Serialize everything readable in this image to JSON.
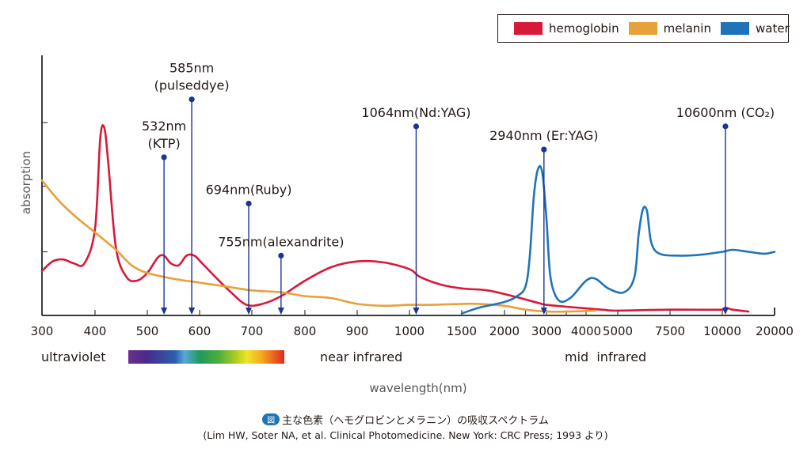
{
  "chart_data": {
    "type": "line",
    "title": "主な色素（ヘモグロビンとメラニン）の吸収スペクトラム",
    "source": "(Lim HW, Soter NA, et al. Clinical Photomedicine. New York: CRC Press; 1993 より)",
    "figure_badge": "図",
    "xlabel": "wavelength(nm)",
    "ylabel": "absorption",
    "x_scale": "piecewise (non-linear, tick-indexed)",
    "x_ticks": [
      300,
      400,
      500,
      600,
      700,
      800,
      900,
      1000,
      1500,
      2000,
      3000,
      4000,
      5000,
      7500,
      10000,
      20000
    ],
    "x_minor_ticks": [
      2500,
      3500
    ],
    "ylim": [
      0,
      1
    ],
    "y_ticks": [
      0.33,
      0.67,
      1.0
    ],
    "grid": false,
    "legend": {
      "position": "top-right",
      "entries": [
        {
          "name": "hemoglobin",
          "color": "#d7193a"
        },
        {
          "name": "melanin",
          "color": "#e8a03a"
        },
        {
          "name": "water",
          "color": "#1f74b8"
        }
      ]
    },
    "series": [
      {
        "name": "hemoglobin",
        "color": "#d7193a",
        "points": [
          [
            300,
            0.23
          ],
          [
            320,
            0.28
          ],
          [
            340,
            0.29
          ],
          [
            360,
            0.27
          ],
          [
            380,
            0.27
          ],
          [
            400,
            0.45
          ],
          [
            410,
            0.92
          ],
          [
            418,
            0.97
          ],
          [
            425,
            0.8
          ],
          [
            440,
            0.35
          ],
          [
            460,
            0.2
          ],
          [
            480,
            0.18
          ],
          [
            500,
            0.22
          ],
          [
            520,
            0.3
          ],
          [
            532,
            0.31
          ],
          [
            545,
            0.27
          ],
          [
            560,
            0.26
          ],
          [
            575,
            0.31
          ],
          [
            590,
            0.31
          ],
          [
            605,
            0.27
          ],
          [
            630,
            0.2
          ],
          [
            660,
            0.12
          ],
          [
            690,
            0.055
          ],
          [
            720,
            0.06
          ],
          [
            755,
            0.1
          ],
          [
            800,
            0.18
          ],
          [
            850,
            0.25
          ],
          [
            900,
            0.28
          ],
          [
            950,
            0.275
          ],
          [
            1000,
            0.24
          ],
          [
            1100,
            0.2
          ],
          [
            1300,
            0.16
          ],
          [
            1500,
            0.14
          ],
          [
            1800,
            0.13
          ],
          [
            2200,
            0.1
          ],
          [
            2800,
            0.065
          ],
          [
            3000,
            0.055
          ],
          [
            3500,
            0.045
          ],
          [
            4500,
            0.03
          ],
          [
            5000,
            0.025
          ],
          [
            7500,
            0.03
          ],
          [
            10000,
            0.03
          ],
          [
            10600,
            0.04
          ],
          [
            12000,
            0.03
          ],
          [
            15000,
            0.02
          ]
        ]
      },
      {
        "name": "melanin",
        "color": "#e8a03a",
        "points": [
          [
            300,
            0.7
          ],
          [
            330,
            0.6
          ],
          [
            360,
            0.52
          ],
          [
            400,
            0.43
          ],
          [
            440,
            0.34
          ],
          [
            470,
            0.26
          ],
          [
            500,
            0.22
          ],
          [
            550,
            0.19
          ],
          [
            600,
            0.17
          ],
          [
            650,
            0.15
          ],
          [
            700,
            0.13
          ],
          [
            755,
            0.12
          ],
          [
            800,
            0.1
          ],
          [
            850,
            0.09
          ],
          [
            900,
            0.06
          ],
          [
            950,
            0.05
          ],
          [
            1000,
            0.055
          ],
          [
            1200,
            0.055
          ],
          [
            1500,
            0.06
          ],
          [
            1700,
            0.06
          ],
          [
            2000,
            0.05
          ],
          [
            2500,
            0.03
          ],
          [
            3000,
            0.02
          ],
          [
            3500,
            0.02
          ],
          [
            4300,
            0.025
          ]
        ]
      },
      {
        "name": "water",
        "color": "#1f74b8",
        "points": [
          [
            1500,
            0.01
          ],
          [
            1700,
            0.04
          ],
          [
            2000,
            0.07
          ],
          [
            2300,
            0.1
          ],
          [
            2500,
            0.15
          ],
          [
            2600,
            0.3
          ],
          [
            2700,
            0.62
          ],
          [
            2800,
            0.76
          ],
          [
            2900,
            0.74
          ],
          [
            3000,
            0.5
          ],
          [
            3100,
            0.2
          ],
          [
            3300,
            0.08
          ],
          [
            3600,
            0.09
          ],
          [
            4000,
            0.18
          ],
          [
            4300,
            0.19
          ],
          [
            4700,
            0.14
          ],
          [
            5300,
            0.12
          ],
          [
            5800,
            0.2
          ],
          [
            6000,
            0.42
          ],
          [
            6200,
            0.55
          ],
          [
            6400,
            0.54
          ],
          [
            6600,
            0.38
          ],
          [
            7000,
            0.32
          ],
          [
            8000,
            0.31
          ],
          [
            9000,
            0.315
          ],
          [
            10000,
            0.33
          ],
          [
            12000,
            0.34
          ],
          [
            15000,
            0.33
          ],
          [
            18000,
            0.32
          ],
          [
            20000,
            0.33
          ]
        ]
      }
    ],
    "lasers": [
      {
        "wavelength": 532,
        "label": "532nm\n(KTP)",
        "top": 0.82
      },
      {
        "wavelength": 585,
        "label": "585nm\n(pulseddye)",
        "top": 1.12
      },
      {
        "wavelength": 694,
        "label": "694nm(Ruby)",
        "top": 0.58
      },
      {
        "wavelength": 755,
        "label": "755nm(alexandrite)",
        "top": 0.31
      },
      {
        "wavelength": 1064,
        "label": "1064nm(Nd:YAG)",
        "top": 0.98
      },
      {
        "wavelength": 2940,
        "label": "2940nm (Er:YAG)",
        "top": 0.86
      },
      {
        "wavelength": 10600,
        "label": "10600nm (CO₂)",
        "top": 0.98
      }
    ],
    "laser_color": "#1b3590",
    "band_labels": [
      "ultraviolet",
      "near infrared",
      "mid  infrared"
    ]
  }
}
